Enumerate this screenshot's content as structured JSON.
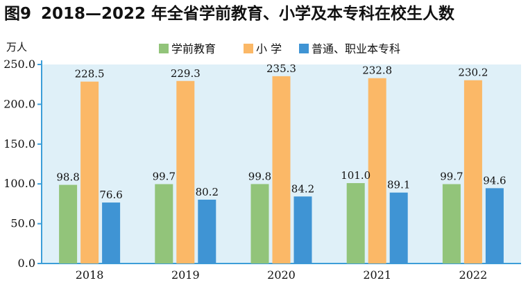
{
  "title": {
    "label": "图9",
    "text": "2018—2022 年全省学前教育、小学及本专科在校生人数"
  },
  "chart_data": {
    "type": "bar",
    "unit": "万人",
    "categories": [
      "2018",
      "2019",
      "2020",
      "2021",
      "2022"
    ],
    "series": [
      {
        "name": "学前教育",
        "color": "#92c47a",
        "values": [
          98.8,
          99.7,
          99.8,
          101.0,
          99.7
        ],
        "labels": [
          "98.8",
          "99.7",
          "99.8",
          "101.0",
          "99.7"
        ]
      },
      {
        "name": "小 学",
        "color": "#fbb867",
        "values": [
          228.5,
          229.3,
          235.3,
          232.8,
          230.2
        ],
        "labels": [
          "228.5",
          "229.3",
          "235.3",
          "232.8",
          "230.2"
        ]
      },
      {
        "name": "普通、职业本专科",
        "color": "#3f94d4",
        "values": [
          76.6,
          80.2,
          84.2,
          89.1,
          94.6
        ],
        "labels": [
          "76.6",
          "80.2",
          "84.2",
          "89.1",
          "94.6"
        ]
      }
    ],
    "yticks": [
      "0.0",
      "50.0",
      "100.0",
      "150.0",
      "200.0",
      "250.0"
    ],
    "ylim": [
      0,
      250
    ],
    "legend": "top",
    "grid": false,
    "background": "#dff0f8"
  }
}
